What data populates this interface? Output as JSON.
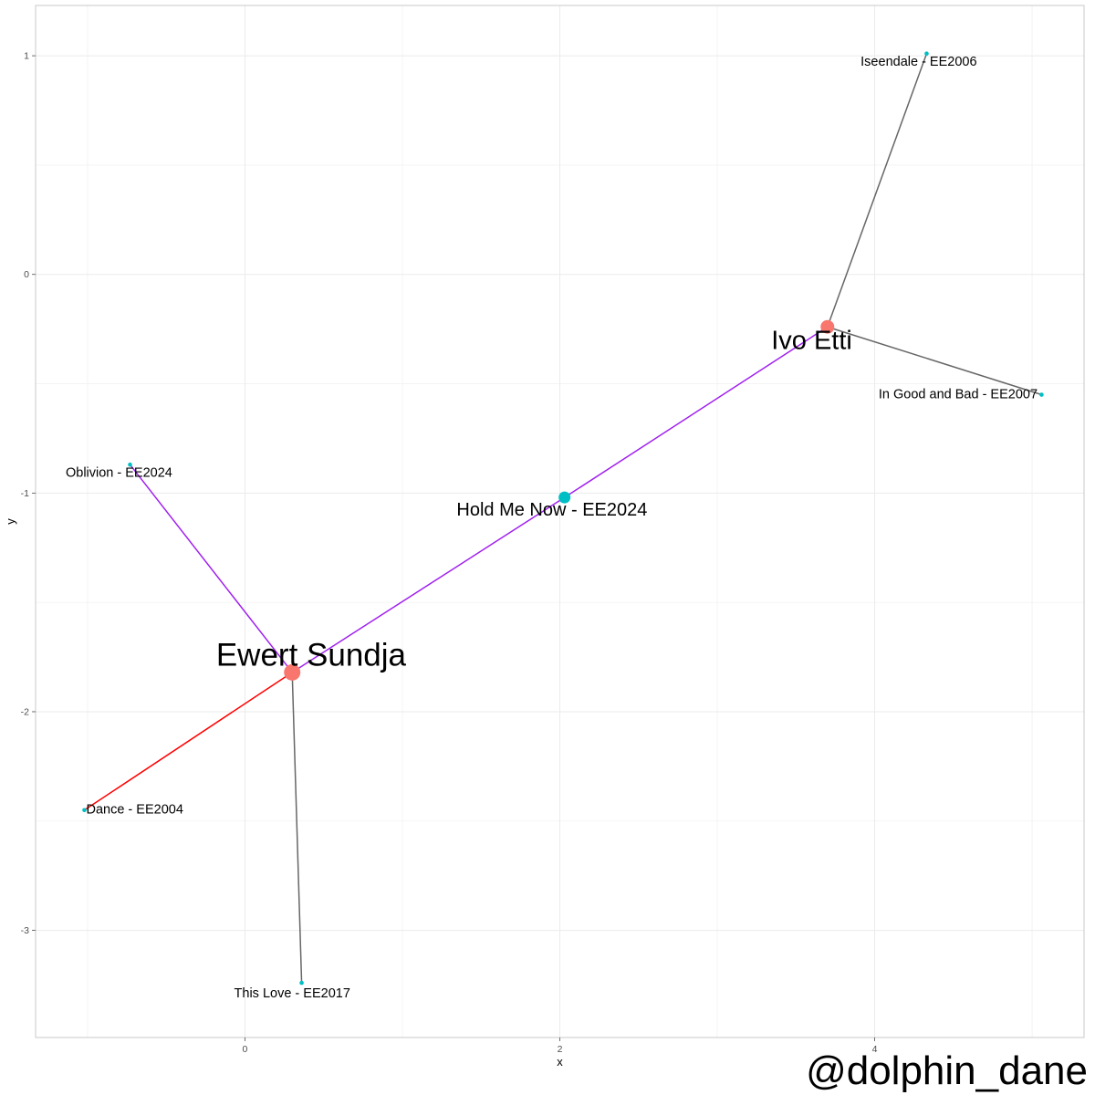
{
  "chart_data": {
    "type": "network",
    "xlabel": "x",
    "ylabel": "y",
    "xlim": [
      -1.33,
      5.33
    ],
    "ylim": [
      -3.49,
      1.23
    ],
    "x_ticks": [
      0,
      2,
      4
    ],
    "y_ticks": [
      -3,
      -2,
      -1,
      0,
      1
    ],
    "grid": true,
    "nodes": [
      {
        "id": "ewert",
        "label": "Ewert Sundja",
        "type": "artist",
        "x": 0.3,
        "y": -1.82,
        "label_dx": 0.12,
        "label_dy": 0.07
      },
      {
        "id": "ivo",
        "label": "Ivo Etti",
        "type": "artist",
        "x": 3.7,
        "y": -0.24,
        "label_dx": -0.1,
        "label_dy": -0.07
      },
      {
        "id": "hold",
        "label": "Hold Me Now - EE2024",
        "type": "song",
        "x": 2.03,
        "y": -1.02,
        "label_dx": -0.08,
        "label_dy": -0.06
      },
      {
        "id": "oblivion",
        "label": "Oblivion - EE2024",
        "type": "song",
        "x": -0.73,
        "y": -0.87,
        "label_dx": -0.07,
        "label_dy": -0.04
      },
      {
        "id": "dance",
        "label": "Dance - EE2004",
        "type": "song",
        "x": -1.02,
        "y": -2.45,
        "label_dx": 0.32,
        "label_dy": 0.0
      },
      {
        "id": "thislove",
        "label": "This Love - EE2017",
        "type": "song",
        "x": 0.36,
        "y": -3.24,
        "label_dx": -0.06,
        "label_dy": -0.05
      },
      {
        "id": "iseendale",
        "label": "Iseendale - EE2006",
        "type": "song",
        "x": 4.33,
        "y": 1.01,
        "label_dx": -0.05,
        "label_dy": -0.04
      },
      {
        "id": "ingood",
        "label": "In Good and Bad - EE2007",
        "type": "song",
        "x": 5.06,
        "y": -0.55,
        "label_dx": -0.53,
        "label_dy": 0.0
      }
    ],
    "edges": [
      {
        "from": "ewert",
        "to": "hold",
        "color": "#a020f0"
      },
      {
        "from": "hold",
        "to": "ivo",
        "color": "#a020f0"
      },
      {
        "from": "ewert",
        "to": "oblivion",
        "color": "#a020f0"
      },
      {
        "from": "ewert",
        "to": "dance",
        "color": "#ff0000"
      },
      {
        "from": "ewert",
        "to": "thislove",
        "color": "#666666"
      },
      {
        "from": "ivo",
        "to": "iseendale",
        "color": "#666666"
      },
      {
        "from": "ivo",
        "to": "ingood",
        "color": "#666666"
      }
    ],
    "colors": {
      "artist": "#f8766d",
      "song": "#00bfc4"
    }
  },
  "watermark": "@dolphin_dane"
}
